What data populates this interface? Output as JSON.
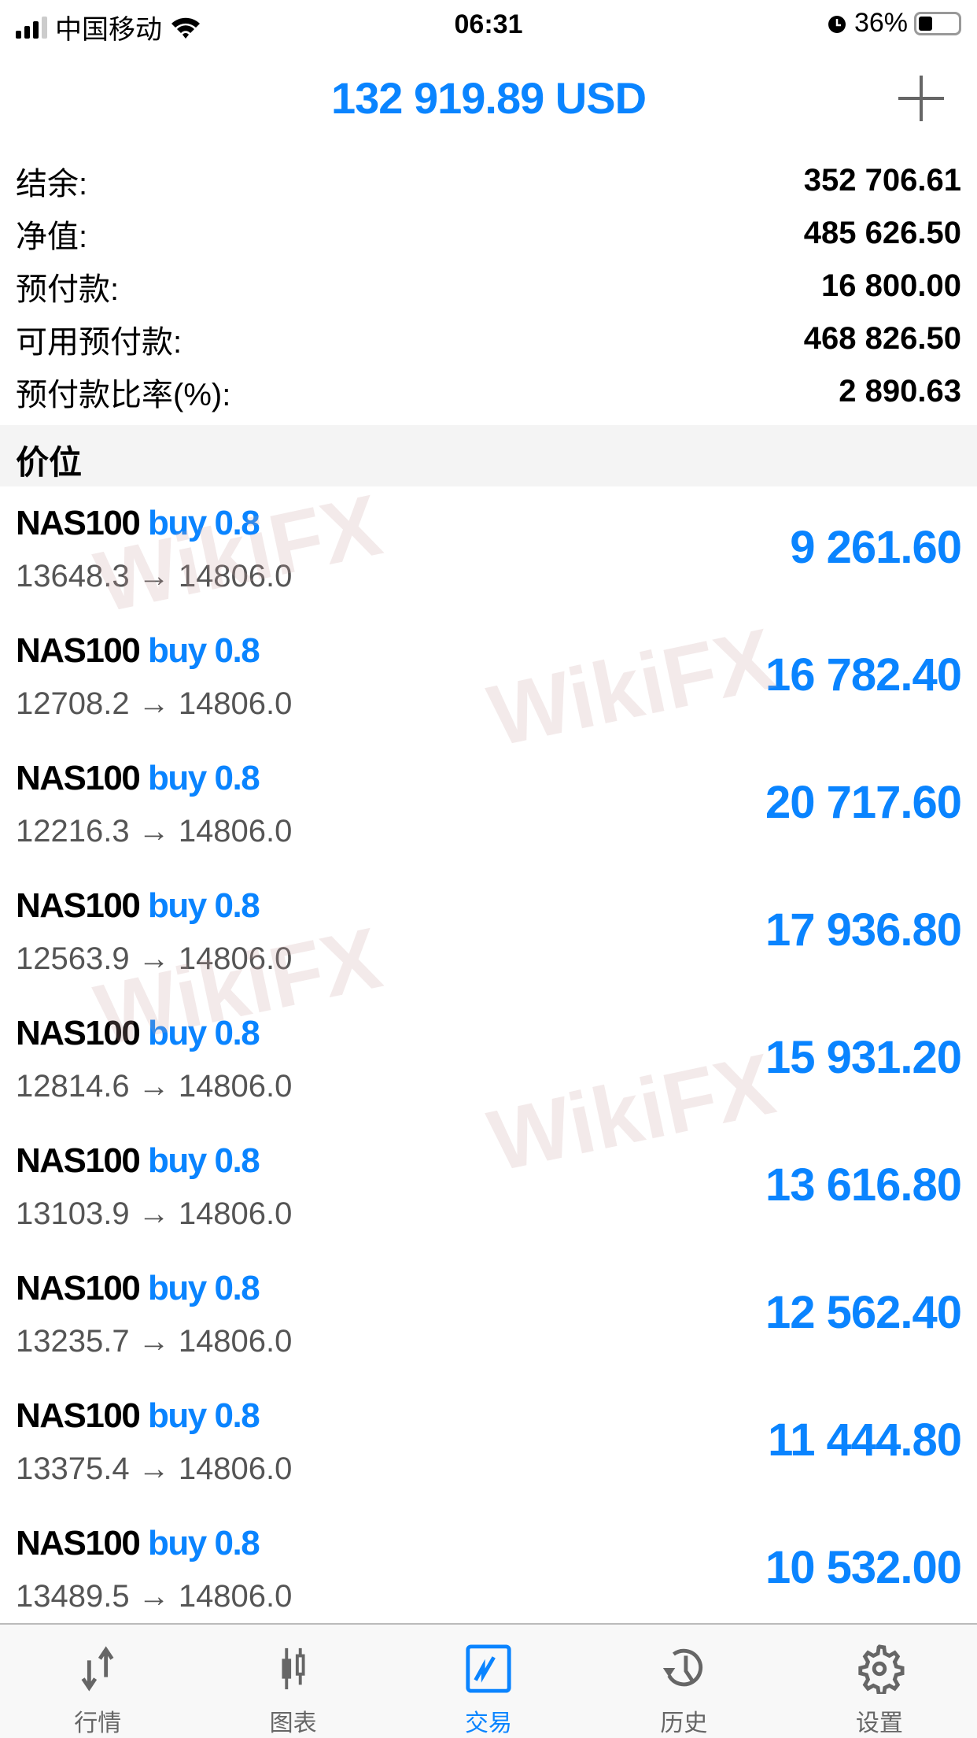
{
  "status_bar": {
    "carrier": "中国移动",
    "time": "06:31",
    "battery": "36%",
    "battery_level": 0.36
  },
  "header": {
    "title": "132 919.89 USD",
    "add_icon": "plus-icon"
  },
  "summary": [
    {
      "label": "结余:",
      "value": "352 706.61"
    },
    {
      "label": "净值:",
      "value": "485 626.50"
    },
    {
      "label": "预付款:",
      "value": "16 800.00"
    },
    {
      "label": "可用预付款:",
      "value": "468 826.50"
    },
    {
      "label": "预付款比率(%):",
      "value": "2 890.63"
    }
  ],
  "section_title": "价位",
  "positions": [
    {
      "symbol": "NAS100",
      "side": "buy 0.8",
      "prices": "13648.3 → 14806.0",
      "profit": "9 261.60"
    },
    {
      "symbol": "NAS100",
      "side": "buy 0.8",
      "prices": "12708.2 → 14806.0",
      "profit": "16 782.40"
    },
    {
      "symbol": "NAS100",
      "side": "buy 0.8",
      "prices": "12216.3 → 14806.0",
      "profit": "20 717.60"
    },
    {
      "symbol": "NAS100",
      "side": "buy 0.8",
      "prices": "12563.9 → 14806.0",
      "profit": "17 936.80"
    },
    {
      "symbol": "NAS100",
      "side": "buy 0.8",
      "prices": "12814.6 → 14806.0",
      "profit": "15 931.20"
    },
    {
      "symbol": "NAS100",
      "side": "buy 0.8",
      "prices": "13103.9 → 14806.0",
      "profit": "13 616.80"
    },
    {
      "symbol": "NAS100",
      "side": "buy 0.8",
      "prices": "13235.7 → 14806.0",
      "profit": "12 562.40"
    },
    {
      "symbol": "NAS100",
      "side": "buy 0.8",
      "prices": "13375.4 → 14806.0",
      "profit": "11 444.80"
    },
    {
      "symbol": "NAS100",
      "side": "buy 0.8",
      "prices": "13489.5 → 14806.0",
      "profit": "10 532.00"
    }
  ],
  "watermark": "WikiFX",
  "tabs": [
    {
      "label": "行情",
      "icon": "quotes-arrows-icon"
    },
    {
      "label": "图表",
      "icon": "candlestick-chart-icon"
    },
    {
      "label": "交易",
      "icon": "trade-chart-icon",
      "active": true
    },
    {
      "label": "历史",
      "icon": "history-clock-icon"
    },
    {
      "label": "设置",
      "icon": "gear-icon"
    }
  ],
  "colors": {
    "accent": "#0a84ff",
    "inactive": "#666666"
  }
}
